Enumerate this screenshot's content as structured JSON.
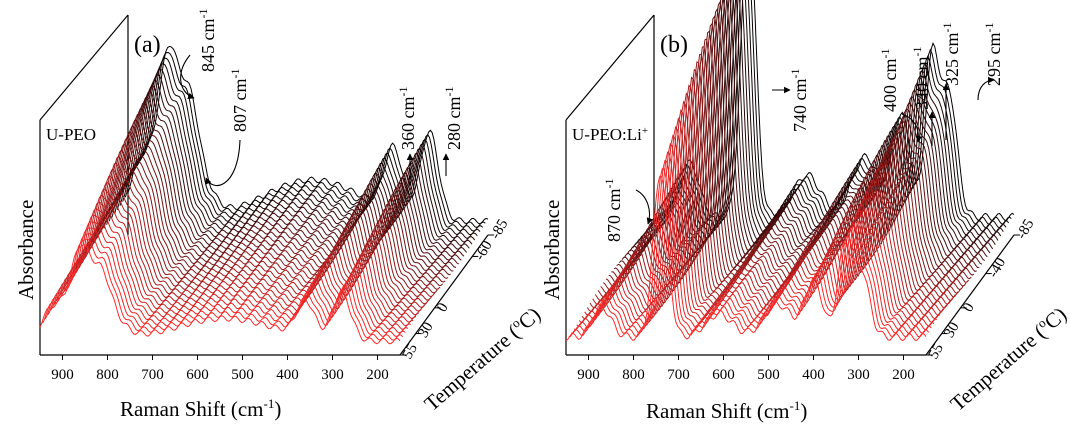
{
  "chart_data": [
    {
      "type": "line",
      "panel_label": "(a)",
      "sample": "U-PEO",
      "xlabel": "Raman Shift (cm",
      "xlabel_sup": "-1",
      "xlabel_end": ")",
      "ylabel": "Absorbance",
      "zlabel": "Temperature (",
      "zlabel_sup": "o",
      "zlabel_end": "C)",
      "x_ticks": [
        "900",
        "800",
        "700",
        "600",
        "500",
        "400",
        "300",
        "200"
      ],
      "z_ticks": [
        "55",
        "30",
        "0",
        "-60",
        "-85"
      ],
      "xlim": [
        950,
        150
      ],
      "zlim": [
        55,
        -85
      ],
      "colors": {
        "hot": "#ff2a2a",
        "cold": "#000000"
      },
      "annotations": [
        {
          "text": "845  cm",
          "sup": "-1",
          "shift": 845
        },
        {
          "text": "807  cm",
          "sup": "-1",
          "shift": 807
        },
        {
          "text": "360 cm",
          "sup": "-1",
          "shift": 360
        },
        {
          "text": "280  cm",
          "sup": "-1",
          "shift": 280
        }
      ],
      "peaks": [
        {
          "shift": 845,
          "height": 0.62,
          "width": 45
        },
        {
          "shift": 807,
          "height": 0.1,
          "width": 15
        },
        {
          "shift": 930,
          "height": 0.15,
          "width": 20
        },
        {
          "shift": 862,
          "height": 0.18,
          "width": 15
        },
        {
          "shift": 540,
          "height": 0.18,
          "width": 110
        },
        {
          "shift": 360,
          "height": 0.28,
          "width": 20
        },
        {
          "shift": 280,
          "height": 0.38,
          "width": 20
        }
      ]
    },
    {
      "type": "line",
      "panel_label": "(b)",
      "sample": "U-PEO:Li",
      "sample_sup": "+",
      "xlabel": "Raman Shift (cm",
      "xlabel_sup": "-1",
      "xlabel_end": ")",
      "ylabel": "Absorbance",
      "zlabel": "Temperature (",
      "zlabel_sup": "o",
      "zlabel_end": "C)",
      "x_ticks": [
        "900",
        "800",
        "700",
        "600",
        "500",
        "400",
        "300",
        "200"
      ],
      "z_ticks": [
        "55",
        "30",
        "0",
        "-40",
        "-85"
      ],
      "xlim": [
        950,
        150
      ],
      "zlim": [
        55,
        -85
      ],
      "colors": {
        "hot": "#ff2a2a",
        "cold": "#000000"
      },
      "annotations": [
        {
          "text": "870  cm",
          "sup": "-1",
          "shift": 870
        },
        {
          "text": "740  cm",
          "sup": "-1",
          "shift": 740
        },
        {
          "text": "400  cm",
          "sup": "-1",
          "shift": 400
        },
        {
          "text": "340  cm",
          "sup": "-1",
          "shift": 340
        },
        {
          "text": "325  cm",
          "sup": "-1",
          "shift": 325
        },
        {
          "text": "295  cm",
          "sup": "-1",
          "shift": 295
        }
      ],
      "peaks": [
        {
          "shift": 740,
          "height": 1.0,
          "width": 16
        },
        {
          "shift": 870,
          "height": 0.18,
          "width": 20
        },
        {
          "shift": 610,
          "height": 0.14,
          "width": 30
        },
        {
          "shift": 480,
          "height": 0.2,
          "width": 30
        },
        {
          "shift": 400,
          "height": 0.34,
          "width": 20
        },
        {
          "shift": 340,
          "height": 0.3,
          "width": 12
        },
        {
          "shift": 325,
          "height": 0.32,
          "width": 12
        },
        {
          "shift": 295,
          "height": 0.42,
          "width": 18
        }
      ]
    }
  ]
}
